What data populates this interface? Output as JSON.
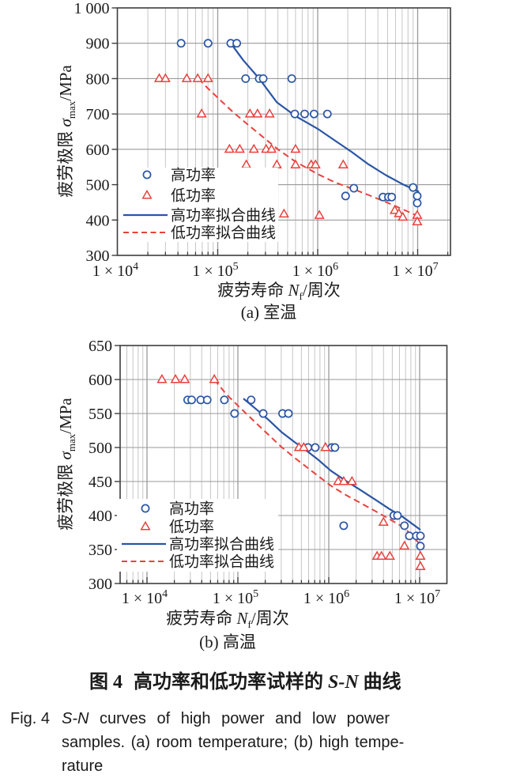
{
  "figure": {
    "background": "#ffffff",
    "colors": {
      "high_power": "#2a55a4",
      "low_power": "#e8423d",
      "grid_minor": "#c6c6c6",
      "grid_major": "#9a9a9a",
      "frame": "#3d3d3d",
      "text": "#1a1a1a"
    },
    "caption_cn": {
      "fig_label": "图 4",
      "text_before_italic": "高功率和低功率试样的 ",
      "italic": "S-N",
      "text_after_italic": " 曲线"
    },
    "caption_en": {
      "fig_label": "Fig. 4",
      "line1_italic": "S-N",
      "line1_rest": "curves of high power and low power",
      "line2": "samples. (a) room temperature; (b) high tempe-",
      "line3": "rature"
    }
  },
  "chart_data": [
    {
      "id": "a",
      "type": "scatter",
      "title": "(a) 室温",
      "x_scale": "log",
      "x_range": [
        10000,
        22000000
      ],
      "y_range": [
        300,
        1000
      ],
      "legend_position": "lower-left",
      "x_label_parts": {
        "prefix": "疲劳寿命 ",
        "variable": "N",
        "subscript": "f",
        "suffix": "/周次"
      },
      "y_label_parts": {
        "prefix": "疲劳极限 ",
        "variable": "σ",
        "subscript": "max",
        "suffix": "/MPa"
      },
      "x_ticks": [
        {
          "v": 10000,
          "base": "1 × 10",
          "exp": "4"
        },
        {
          "v": 100000,
          "base": "1 × 10",
          "exp": "5"
        },
        {
          "v": 1000000,
          "base": "1 × 10",
          "exp": "6"
        },
        {
          "v": 10000000,
          "base": "1 × 10",
          "exp": "7"
        }
      ],
      "y_ticks": [
        {
          "v": 1000,
          "label": "1 000"
        },
        {
          "v": 900,
          "label": "900"
        },
        {
          "v": 800,
          "label": "800"
        },
        {
          "v": 700,
          "label": "700"
        },
        {
          "v": 600,
          "label": "600"
        },
        {
          "v": 500,
          "label": "500"
        },
        {
          "v": 400,
          "label": "400"
        },
        {
          "v": 300,
          "label": "300"
        }
      ],
      "series": [
        {
          "name": "高功率",
          "type": "scatter",
          "marker": "circle",
          "color": "#2a55a4",
          "points": [
            [
              43000,
              900
            ],
            [
              80000,
              900
            ],
            [
              135000,
              900
            ],
            [
              155000,
              900
            ],
            [
              190000,
              800
            ],
            [
              260000,
              800
            ],
            [
              285000,
              800
            ],
            [
              550000,
              800
            ],
            [
              590000,
              700
            ],
            [
              740000,
              700
            ],
            [
              920000,
              700
            ],
            [
              1250000,
              700
            ],
            [
              1900000,
              468
            ],
            [
              2300000,
              490
            ],
            [
              4500000,
              465
            ],
            [
              5100000,
              465
            ],
            [
              5500000,
              465
            ],
            [
              9000000,
              492
            ],
            [
              9900000,
              468
            ],
            [
              9900000,
              448
            ]
          ]
        },
        {
          "name": "低功率",
          "type": "scatter",
          "marker": "triangle",
          "color": "#e8423d",
          "points": [
            [
              26000,
              800
            ],
            [
              30000,
              800
            ],
            [
              49000,
              800
            ],
            [
              63000,
              800
            ],
            [
              80000,
              800
            ],
            [
              69000,
              700
            ],
            [
              210000,
              700
            ],
            [
              250000,
              700
            ],
            [
              330000,
              700
            ],
            [
              131000,
              600
            ],
            [
              166000,
              600
            ],
            [
              230000,
              600
            ],
            [
              305000,
              600
            ],
            [
              345000,
              600
            ],
            [
              600000,
              600
            ],
            [
              193000,
              556
            ],
            [
              390000,
              556
            ],
            [
              600000,
              556
            ],
            [
              860000,
              556
            ],
            [
              950000,
              556
            ],
            [
              1800000,
              556
            ],
            [
              460000,
              417
            ],
            [
              1040000,
              413
            ],
            [
              5900000,
              427
            ],
            [
              6500000,
              418
            ],
            [
              7100000,
              408
            ],
            [
              9900000,
              413
            ],
            [
              9900000,
              395
            ]
          ]
        },
        {
          "name": "高功率拟合曲线",
          "type": "line",
          "style": "solid",
          "color": "#2a55a4",
          "points": [
            [
              135000,
              900
            ],
            [
              180000,
              852
            ],
            [
              260000,
              800
            ],
            [
              390000,
              733
            ],
            [
              600000,
              694
            ],
            [
              1000000,
              658
            ],
            [
              1500000,
              624
            ],
            [
              2200000,
              592
            ],
            [
              3200000,
              558
            ],
            [
              4800000,
              527
            ],
            [
              7000000,
              502
            ],
            [
              10300000,
              480
            ]
          ]
        },
        {
          "name": "低功率拟合曲线",
          "type": "line",
          "style": "dashed",
          "color": "#e8423d",
          "points": [
            [
              64000,
              800
            ],
            [
              80000,
              772
            ],
            [
              100000,
              746
            ],
            [
              140000,
              707
            ],
            [
              200000,
              670
            ],
            [
              300000,
              629
            ],
            [
              400000,
              600
            ],
            [
              600000,
              565
            ],
            [
              1000000,
              530
            ],
            [
              1500000,
              506
            ],
            [
              2200000,
              489
            ],
            [
              3200000,
              471
            ],
            [
              4800000,
              451
            ],
            [
              7000000,
              431
            ],
            [
              10300000,
              410
            ]
          ]
        }
      ]
    },
    {
      "id": "b",
      "type": "scatter",
      "title": "(b) 高温",
      "x_scale": "log",
      "x_range": [
        5000,
        20000000
      ],
      "y_range": [
        300,
        650
      ],
      "legend_position": "lower-left",
      "x_label_parts": {
        "prefix": "疲劳寿命 ",
        "variable": "N",
        "subscript": "f",
        "suffix": "/周次"
      },
      "y_label_parts": {
        "prefix": "疲劳极限 ",
        "variable": "σ",
        "subscript": "max",
        "suffix": "/MPa"
      },
      "x_ticks": [
        {
          "v": 10000,
          "base": "1 × 10",
          "exp": "4"
        },
        {
          "v": 100000,
          "base": "1 × 10",
          "exp": "5"
        },
        {
          "v": 1000000,
          "base": "1 × 10",
          "exp": "6"
        },
        {
          "v": 10000000,
          "base": "1 × 10",
          "exp": "7"
        }
      ],
      "y_ticks": [
        {
          "v": 650,
          "label": "650"
        },
        {
          "v": 600,
          "label": "600"
        },
        {
          "v": 550,
          "label": "550"
        },
        {
          "v": 500,
          "label": "500"
        },
        {
          "v": 450,
          "label": "450"
        },
        {
          "v": 400,
          "label": "400"
        },
        {
          "v": 350,
          "label": "350"
        },
        {
          "v": 300,
          "label": "300"
        }
      ],
      "series": [
        {
          "name": "高功率",
          "type": "scatter",
          "marker": "circle",
          "color": "#2a55a4",
          "points": [
            [
              28000,
              570
            ],
            [
              31000,
              570
            ],
            [
              39000,
              570
            ],
            [
              46000,
              570
            ],
            [
              71000,
              570
            ],
            [
              140000,
              570
            ],
            [
              92000,
              550
            ],
            [
              190000,
              550
            ],
            [
              310000,
              550
            ],
            [
              360000,
              550
            ],
            [
              590000,
              500
            ],
            [
              710000,
              500
            ],
            [
              1080000,
              500
            ],
            [
              1170000,
              500
            ],
            [
              5200000,
              400
            ],
            [
              5700000,
              400
            ],
            [
              1460000,
              385
            ],
            [
              6800000,
              385
            ],
            [
              7700000,
              370
            ],
            [
              9200000,
              370
            ],
            [
              10200000,
              370
            ],
            [
              10200000,
              355
            ]
          ]
        },
        {
          "name": "低功率",
          "type": "scatter",
          "marker": "triangle",
          "color": "#e8423d",
          "points": [
            [
              14600,
              600
            ],
            [
              20600,
              600
            ],
            [
              26000,
              600
            ],
            [
              55000,
              600
            ],
            [
              470000,
              500
            ],
            [
              530000,
              500
            ],
            [
              920000,
              500
            ],
            [
              1270000,
              450
            ],
            [
              1460000,
              450
            ],
            [
              1800000,
              450
            ],
            [
              4000000,
              390
            ],
            [
              6800000,
              355
            ],
            [
              3400000,
              340
            ],
            [
              3800000,
              340
            ],
            [
              4700000,
              340
            ],
            [
              10200000,
              340
            ],
            [
              10200000,
              325
            ]
          ]
        },
        {
          "name": "高功率拟合曲线",
          "type": "line",
          "style": "solid",
          "color": "#2a55a4",
          "points": [
            [
              115000,
              572
            ],
            [
              160000,
              556
            ],
            [
              220000,
              540
            ],
            [
              300000,
              523
            ],
            [
              420000,
              508
            ],
            [
              550000,
              497
            ],
            [
              750000,
              483
            ],
            [
              1050000,
              466
            ],
            [
              1500000,
              452
            ],
            [
              2200000,
              438
            ],
            [
              3200000,
              424
            ],
            [
              4600000,
              410
            ],
            [
              6500000,
              398
            ],
            [
              10200000,
              379
            ]
          ]
        },
        {
          "name": "低功率拟合曲线",
          "type": "line",
          "style": "dashed",
          "color": "#e8423d",
          "points": [
            [
              55000,
              600
            ],
            [
              75000,
              578
            ],
            [
              105000,
              559
            ],
            [
              150000,
              539
            ],
            [
              220000,
              518
            ],
            [
              300000,
              501
            ],
            [
              420000,
              485
            ],
            [
              600000,
              469
            ],
            [
              1050000,
              444
            ],
            [
              1500000,
              431
            ],
            [
              2200000,
              419
            ],
            [
              3200000,
              407
            ],
            [
              4600000,
              395
            ],
            [
              6800000,
              382
            ],
            [
              10200000,
              357
            ]
          ]
        }
      ]
    }
  ]
}
